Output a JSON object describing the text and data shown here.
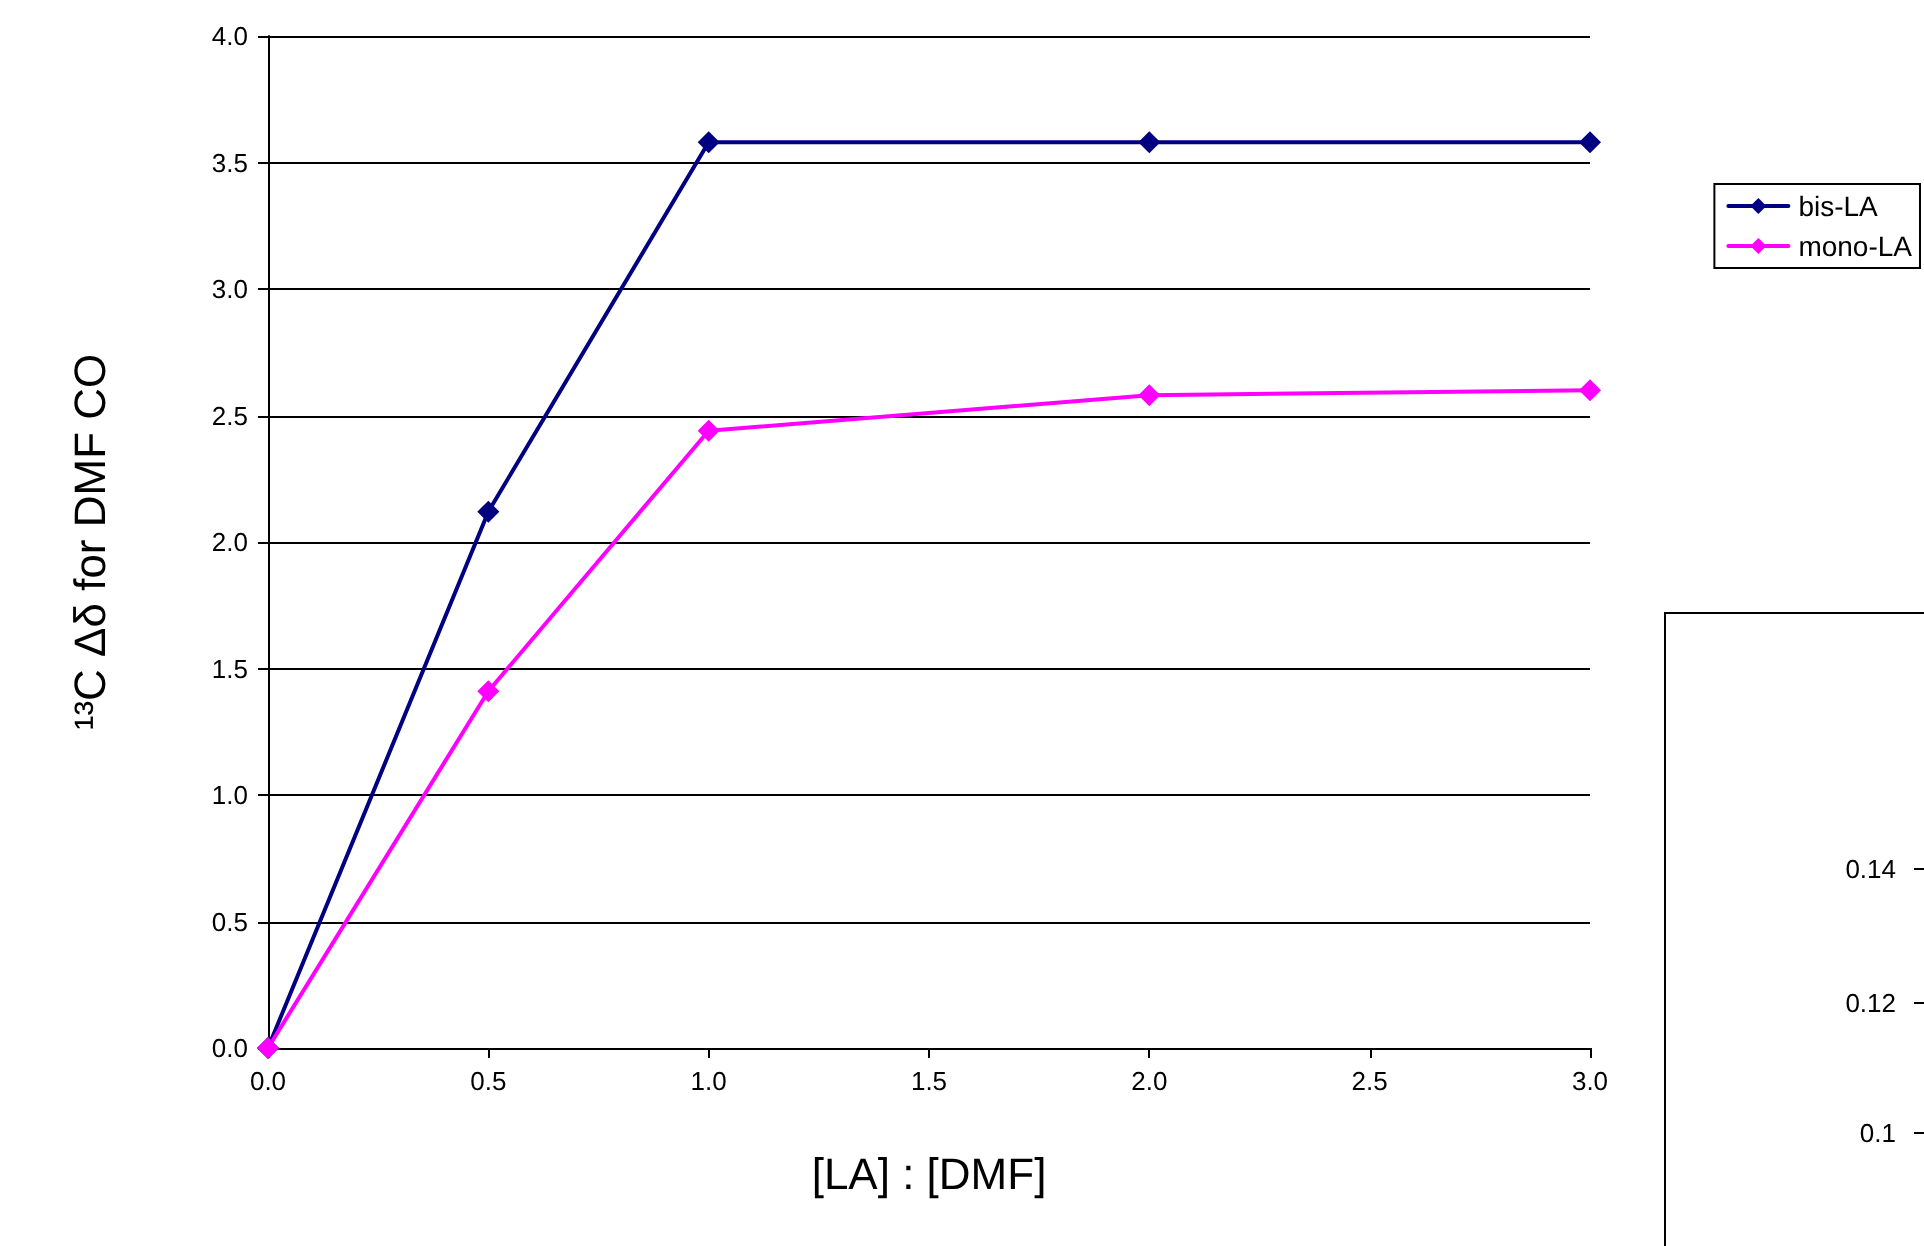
{
  "chart_data": [
    {
      "type": "line",
      "xlabel": "[LA] : [DMF]",
      "ylabel": "¹³C Δδ for DMF CO",
      "x": [
        0,
        0.5,
        1,
        2,
        3
      ],
      "series": [
        {
          "name": "bis-LA",
          "color": "#000080",
          "values": [
            0,
            2.12,
            3.58,
            3.58,
            3.58
          ]
        },
        {
          "name": "mono-LA",
          "color": "#ff00ff",
          "values": [
            0,
            1.41,
            2.44,
            2.58,
            2.6
          ]
        }
      ],
      "xlim": [
        0,
        3
      ],
      "xticks": [
        {
          "value": 0,
          "label": "0.0"
        },
        {
          "value": 0.5,
          "label": "0.5"
        },
        {
          "value": 1,
          "label": "1.0"
        },
        {
          "value": 1.5,
          "label": "1.5"
        },
        {
          "value": 2,
          "label": "2.0"
        },
        {
          "value": 2.5,
          "label": "2.5"
        },
        {
          "value": 3,
          "label": "3.0"
        }
      ],
      "ylim": [
        0,
        4
      ],
      "yticks": [
        {
          "value": 0,
          "label": "0.0"
        },
        {
          "value": 0.5,
          "label": "0.5"
        },
        {
          "value": 1,
          "label": "1.0"
        },
        {
          "value": 1.5,
          "label": "1.5"
        },
        {
          "value": 2,
          "label": "2.0"
        },
        {
          "value": 2.5,
          "label": "2.5"
        },
        {
          "value": 3,
          "label": "3.0"
        },
        {
          "value": 3.5,
          "label": "3.5"
        },
        {
          "value": 4,
          "label": "4.0"
        }
      ],
      "grid": "y",
      "legend": "right",
      "marker": "diamond",
      "line_style": "solid"
    },
    {
      "type": "other",
      "annotations": [
        "0.14",
        "0.12",
        "0.1"
      ]
    }
  ]
}
